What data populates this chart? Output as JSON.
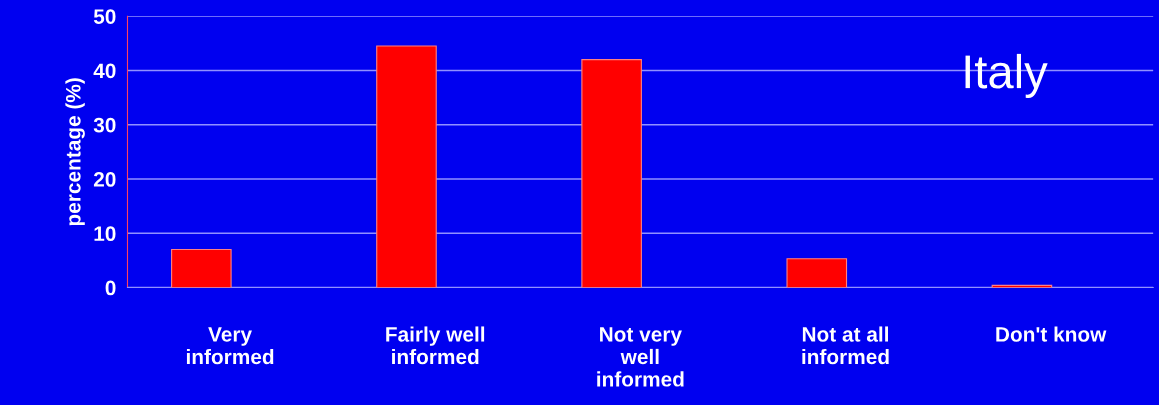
{
  "chart_data": {
    "type": "bar",
    "ylabel": "percentage (%)",
    "categories": [
      "Very\ninformed",
      "Fairly well\ninformed",
      "Not very\nwell\ninformed",
      "Not at all\ninformed",
      "Don't know"
    ],
    "values": [
      7,
      44.5,
      42,
      5.3,
      0.4
    ],
    "color": "#ff0000",
    "ylim": [
      0,
      50
    ],
    "yticks": [
      0,
      10,
      20,
      30,
      40,
      50
    ],
    "grid": "y",
    "annotations": [
      "Italy"
    ]
  }
}
